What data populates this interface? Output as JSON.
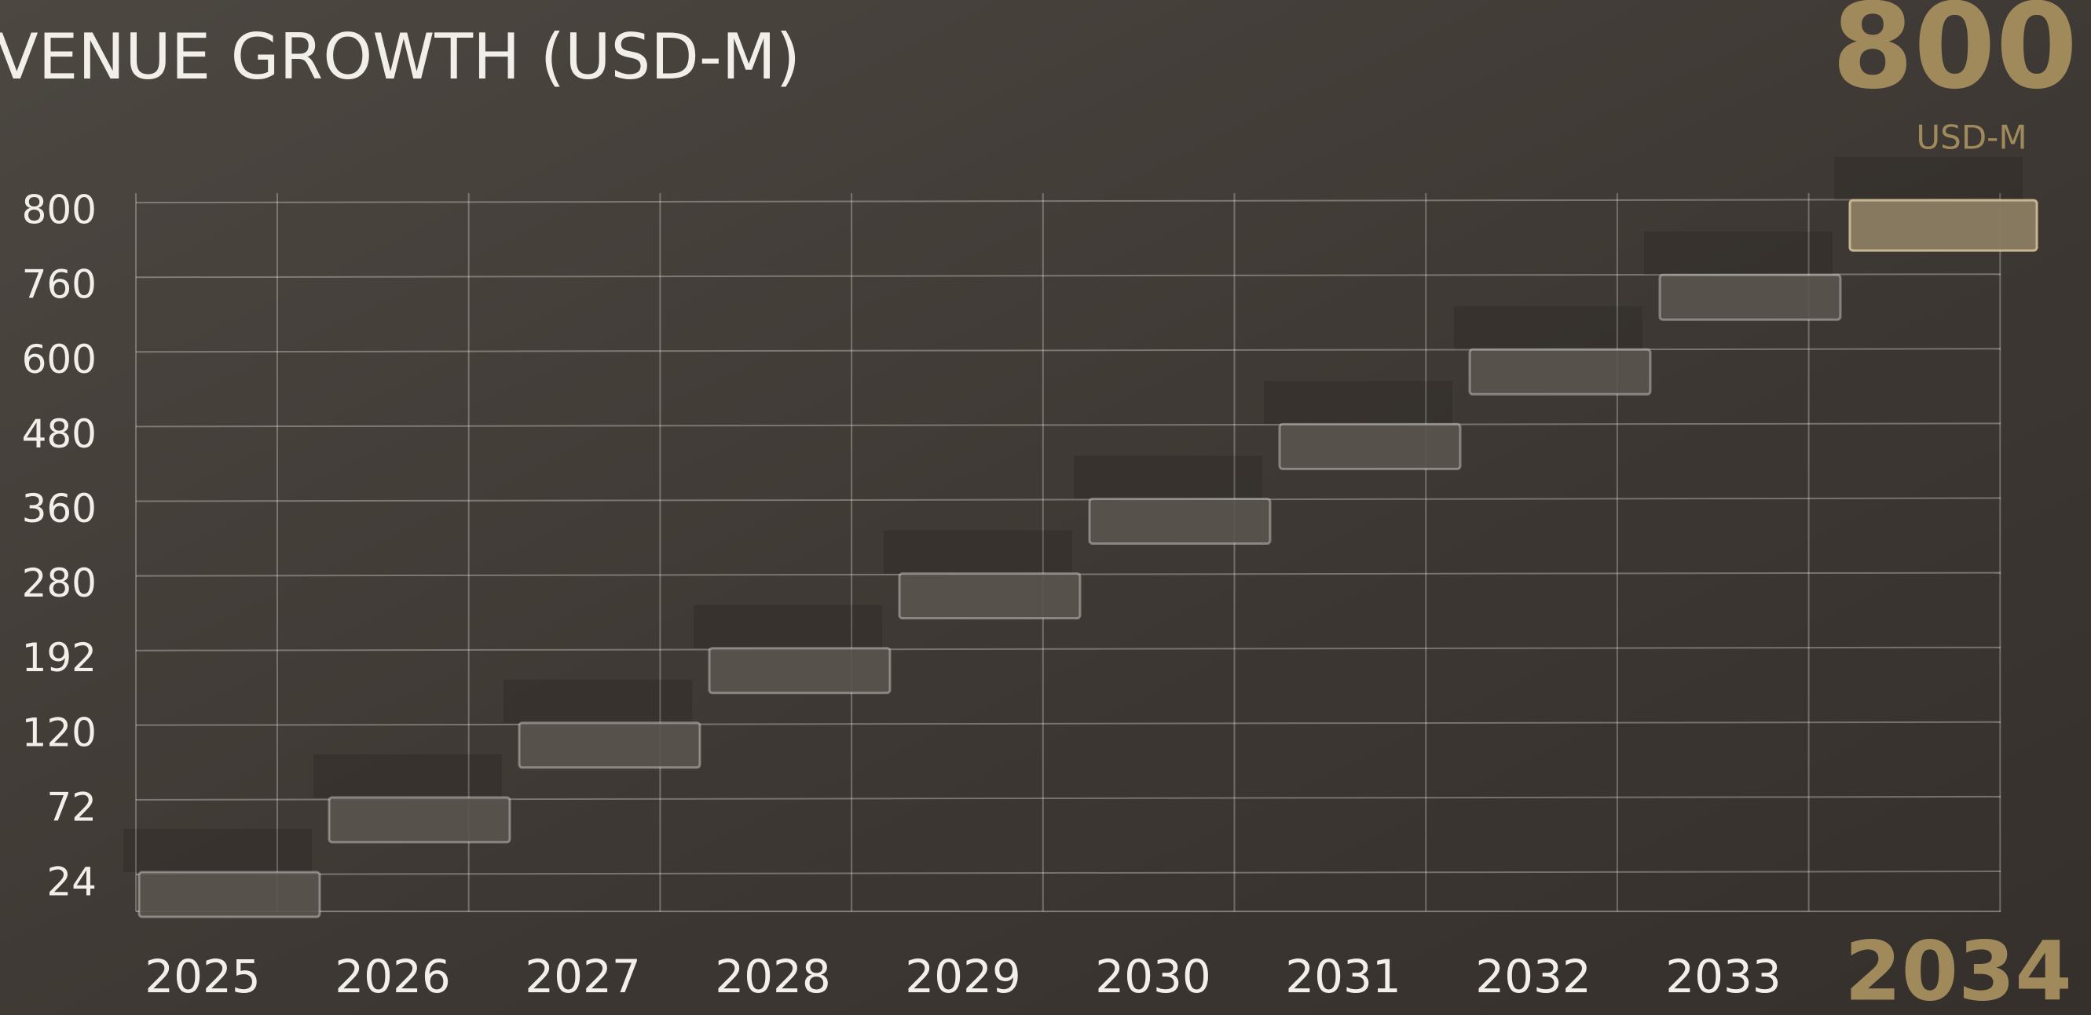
{
  "chart_data": {
    "type": "step",
    "title": "VENUE GROWTH (USD-M)",
    "unit_label": "USD-M",
    "categories": [
      "2025",
      "2026",
      "2027",
      "2028",
      "2029",
      "2030",
      "2031",
      "2032",
      "2033",
      "2034"
    ],
    "values": [
      24,
      72,
      120,
      192,
      280,
      360,
      480,
      600,
      760,
      800
    ],
    "yticks": [
      24,
      72,
      120,
      192,
      280,
      360,
      480,
      600,
      760,
      800
    ],
    "color": "#5a544e",
    "highlight_color": "#a08a5c",
    "grid": true
  }
}
